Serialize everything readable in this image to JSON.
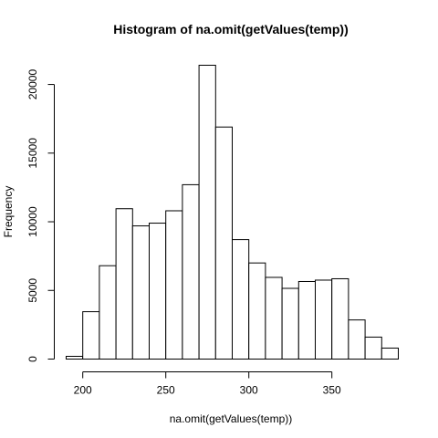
{
  "chart_data": {
    "type": "bar",
    "title": "Histogram of na.omit(getValues(temp))",
    "xlabel": "na.omit(getValues(temp))",
    "ylabel": "Frequency",
    "bin_edges": [
      190,
      200,
      210,
      220,
      230,
      240,
      250,
      260,
      270,
      280,
      290,
      300,
      310,
      320,
      330,
      340,
      350,
      360,
      370,
      380,
      390
    ],
    "values": [
      200,
      3450,
      6800,
      10950,
      9700,
      9900,
      10800,
      12700,
      21400,
      16900,
      8700,
      7000,
      5950,
      5150,
      5650,
      5750,
      5850,
      2850,
      1600,
      800
    ],
    "xlim": [
      190,
      390
    ],
    "ylim": [
      0,
      21400
    ],
    "x_ticks": [
      200,
      250,
      300,
      350
    ],
    "y_ticks": [
      0,
      5000,
      10000,
      15000,
      20000
    ],
    "x_tick_labels": [
      "200",
      "250",
      "300",
      "350"
    ],
    "y_tick_labels": [
      "0",
      "5000",
      "10000",
      "15000",
      "20000"
    ],
    "grid": false,
    "fill_color": "#ffffff",
    "stroke_color": "#000000"
  }
}
